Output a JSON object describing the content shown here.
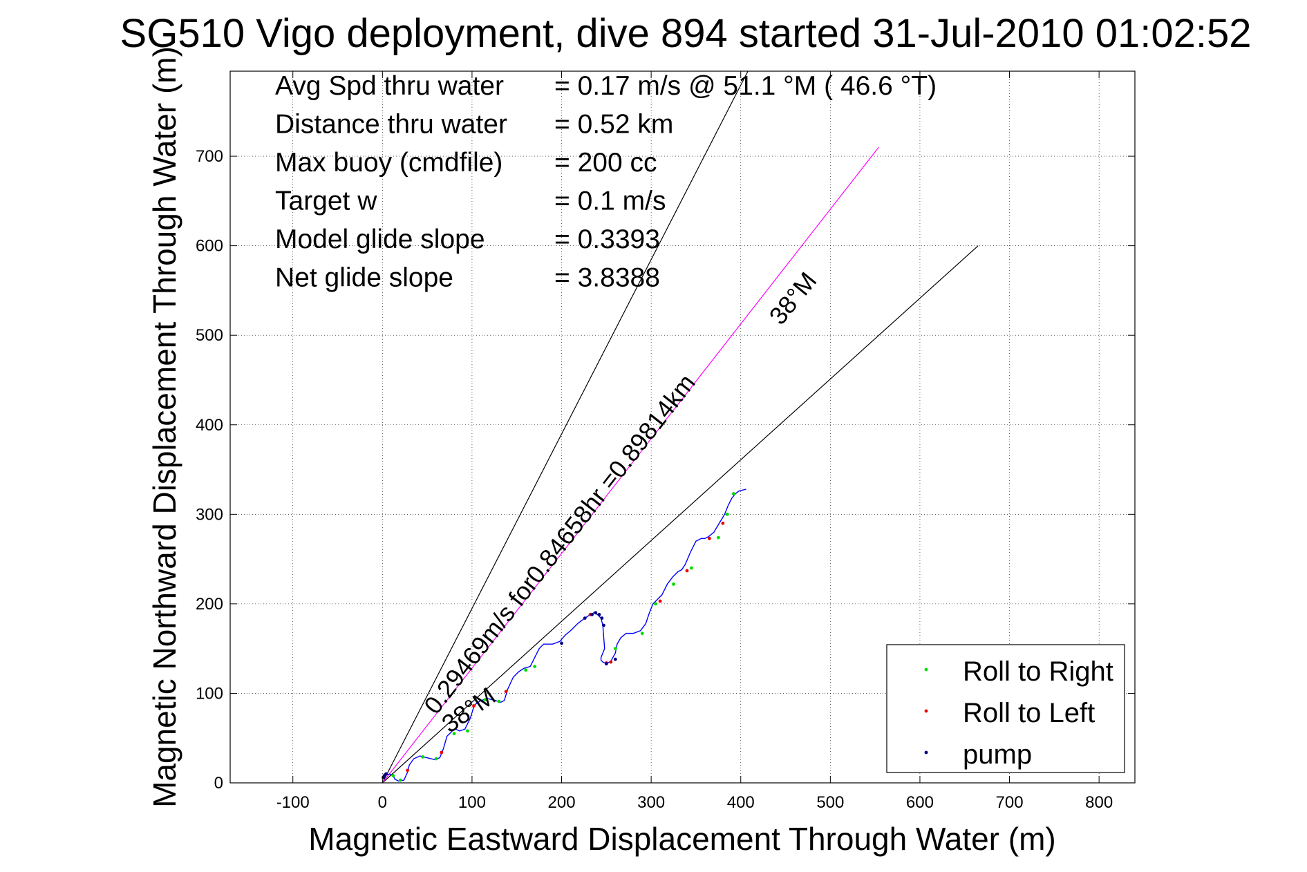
{
  "chart_data": {
    "type": "line",
    "title": "SG510 Vigo deployment, dive 894 started 31-Jul-2010 01:02:52",
    "xlabel": "Magnetic Eastward Displacement Through Water (m)",
    "ylabel": "Magnetic Northward Displacement Through Water (m)",
    "xlim": [
      -170,
      840
    ],
    "ylim": [
      0,
      795
    ],
    "xticks": [
      -100,
      0,
      100,
      200,
      300,
      400,
      500,
      600,
      700,
      800
    ],
    "yticks": [
      0,
      100,
      200,
      300,
      400,
      500,
      600,
      700
    ],
    "grid": true,
    "legend_position": "bottom-right",
    "stats": [
      {
        "label": "Avg Spd thru water",
        "value": "=  0.17 m/s @   51.1 °M ( 46.6 °T)"
      },
      {
        "label": "Distance thru water",
        "value": "=  0.52 km"
      },
      {
        "label": "Max buoy (cmdfile)",
        "value": "= 200 cc"
      },
      {
        "label": "Target w",
        "value": "= 0.1 m/s"
      },
      {
        "label": "Model glide slope",
        "value": "= 0.3393"
      },
      {
        "label": "Net glide slope",
        "value": "= 3.8388"
      }
    ],
    "annotations": [
      {
        "text": "0.29469m/s for0.84658hr =0.89814km",
        "x": 60,
        "y": 75,
        "angle_deg": 52
      },
      {
        "text": "38°M",
        "x": 445,
        "y": 510,
        "angle_deg": 51
      },
      {
        "text": "38°M",
        "x": 75,
        "y": 55,
        "angle_deg": 35
      }
    ],
    "lines": [
      {
        "name": "heading-bound-upper",
        "color": "#000000",
        "x": [
          0,
          408
        ],
        "y": [
          0,
          795
        ]
      },
      {
        "name": "heading-bound-lower",
        "color": "#000000",
        "x": [
          0,
          665
        ],
        "y": [
          0,
          600
        ]
      },
      {
        "name": "current-vector",
        "color": "#ff00ff",
        "x": [
          0,
          554
        ],
        "y": [
          0,
          710
        ]
      }
    ],
    "track": {
      "color": "#0000ff",
      "x": [
        0,
        3,
        8,
        12,
        14,
        18,
        24,
        28,
        30,
        35,
        42,
        50,
        58,
        64,
        68,
        72,
        78,
        82,
        86,
        92,
        98,
        102,
        104,
        110,
        118,
        126,
        132,
        136,
        140,
        146,
        152,
        158,
        165,
        170,
        175,
        180,
        190,
        198,
        204,
        210,
        218,
        226,
        232,
        236,
        240,
        244,
        246,
        248,
        246,
        244,
        244,
        246,
        250,
        255,
        260,
        262,
        266,
        272,
        280,
        288,
        294,
        298,
        302,
        306,
        312,
        318,
        324,
        330,
        334,
        338,
        344,
        350,
        356,
        360,
        364,
        370,
        376,
        382,
        386,
        390,
        394,
        398,
        402,
        406
      ],
      "y": [
        5,
        8,
        10,
        8,
        4,
        2,
        3,
        12,
        20,
        27,
        30,
        28,
        26,
        28,
        38,
        52,
        58,
        60,
        58,
        60,
        72,
        85,
        88,
        92,
        94,
        92,
        90,
        92,
        105,
        118,
        124,
        128,
        130,
        140,
        150,
        155,
        155,
        158,
        165,
        170,
        178,
        184,
        188,
        190,
        188,
        184,
        176,
        150,
        145,
        140,
        137,
        135,
        133,
        136,
        145,
        155,
        162,
        167,
        167,
        170,
        178,
        190,
        200,
        204,
        210,
        222,
        230,
        236,
        238,
        244,
        258,
        270,
        273,
        273,
        275,
        280,
        290,
        300,
        310,
        318,
        323,
        326,
        327,
        328
      ]
    },
    "series": [
      {
        "name": "Roll to Right",
        "color": "#00dd00",
        "marker": "dot",
        "x": [
          12,
          20,
          45,
          60,
          80,
          95,
          115,
          130,
          160,
          170,
          260,
          290,
          305,
          325,
          345,
          375,
          385,
          392
        ],
        "y": [
          8,
          3,
          29,
          27,
          55,
          58,
          93,
          91,
          126,
          130,
          150,
          167,
          200,
          222,
          240,
          274,
          300,
          323
        ]
      },
      {
        "name": "Roll to Left",
        "color": "#ee0000",
        "marker": "dot",
        "x": [
          3,
          28,
          66,
          102,
          138,
          232,
          250,
          255,
          310,
          340,
          365,
          380
        ],
        "y": [
          9,
          14,
          34,
          86,
          102,
          188,
          134,
          135,
          203,
          237,
          273,
          290
        ]
      },
      {
        "name": "pump",
        "color": "#000080",
        "marker": "dot",
        "x": [
          1,
          2,
          4,
          200,
          226,
          234,
          238,
          242,
          245,
          247,
          250,
          260
        ],
        "y": [
          6,
          8,
          10,
          156,
          184,
          188,
          190,
          188,
          184,
          176,
          133,
          138
        ]
      }
    ]
  }
}
